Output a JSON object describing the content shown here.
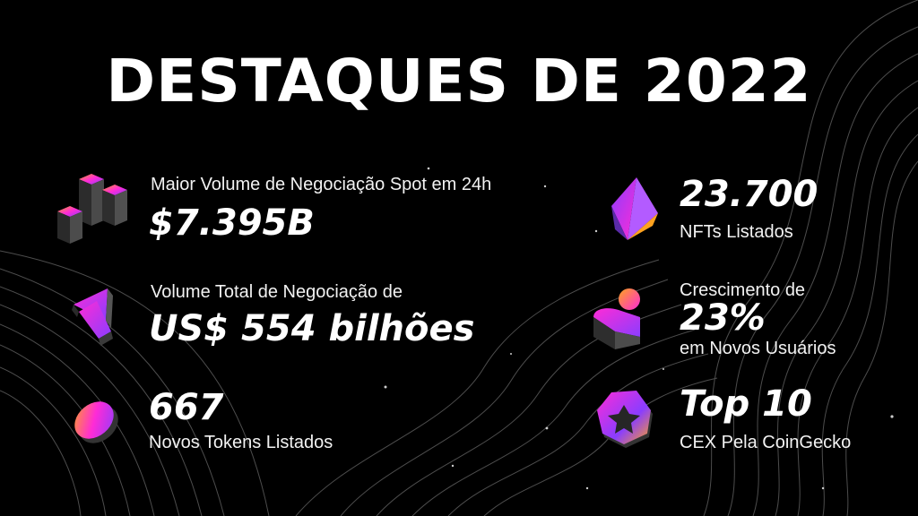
{
  "title": "DESTAQUES DE 2022",
  "highlights": {
    "spot_volume": {
      "label": "Maior Volume de Negociação Spot em 24h",
      "value": "$7.395B",
      "icon": "cubes-icon"
    },
    "total_volume": {
      "label": "Volume Total de Negociação de",
      "value": "US$ 554 bilhões",
      "icon": "arrow-up-icon"
    },
    "tokens": {
      "value": "667",
      "label": "Novos Tokens Listados",
      "icon": "coin-icon"
    },
    "nfts": {
      "value": "23.700",
      "label": "NFTs Listados",
      "icon": "diamond-icon"
    },
    "users": {
      "label_top": "Crescimento de",
      "value": "23%",
      "label_bottom": "em Novos Usuários",
      "icon": "user-icon"
    },
    "ranking": {
      "value": "Top 10",
      "label": "CEX Pela CoinGecko",
      "icon": "badge-icon"
    }
  },
  "colors": {
    "background": "#000000",
    "text": "#ffffff",
    "gradient_pink": "#ff2bd6",
    "gradient_purple": "#8a3dff",
    "gradient_orange": "#ffa21f"
  }
}
